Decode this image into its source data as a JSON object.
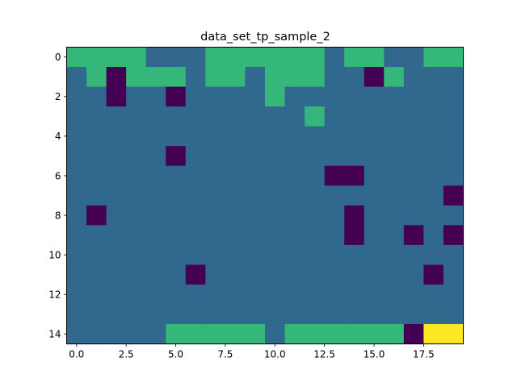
{
  "chart_data": {
    "type": "heatmap",
    "title": "data_set_tp_sample_2",
    "xlabel": "",
    "ylabel": "",
    "xlim": [
      -0.5,
      19.5
    ],
    "ylim": [
      14.5,
      -0.5
    ],
    "x_ticks": [
      0.0,
      2.5,
      5.0,
      7.5,
      10.0,
      12.5,
      15.0,
      17.5
    ],
    "x_tick_labels": [
      "0.0",
      "2.5",
      "5.0",
      "7.5",
      "10.0",
      "12.5",
      "15.0",
      "17.5"
    ],
    "y_ticks": [
      0,
      2,
      4,
      6,
      8,
      10,
      12,
      14
    ],
    "y_tick_labels": [
      "0",
      "2",
      "4",
      "6",
      "8",
      "10",
      "12",
      "14"
    ],
    "grid": false,
    "colormap": "viridis",
    "colors": {
      "0": "#440154",
      "1": "#31688e",
      "2": "#35b779",
      "3": "#fde725"
    },
    "matrix": [
      [
        2,
        2,
        2,
        2,
        1,
        1,
        1,
        2,
        2,
        2,
        2,
        2,
        2,
        1,
        2,
        2,
        1,
        1,
        2,
        2
      ],
      [
        1,
        2,
        0,
        2,
        2,
        2,
        1,
        2,
        2,
        1,
        2,
        2,
        2,
        1,
        1,
        0,
        2,
        1,
        1,
        1
      ],
      [
        1,
        1,
        0,
        1,
        1,
        0,
        1,
        1,
        1,
        1,
        2,
        1,
        1,
        1,
        1,
        1,
        1,
        1,
        1,
        1
      ],
      [
        1,
        1,
        1,
        1,
        1,
        1,
        1,
        1,
        1,
        1,
        1,
        1,
        2,
        1,
        1,
        1,
        1,
        1,
        1,
        1
      ],
      [
        1,
        1,
        1,
        1,
        1,
        1,
        1,
        1,
        1,
        1,
        1,
        1,
        1,
        1,
        1,
        1,
        1,
        1,
        1,
        1
      ],
      [
        1,
        1,
        1,
        1,
        1,
        0,
        1,
        1,
        1,
        1,
        1,
        1,
        1,
        1,
        1,
        1,
        1,
        1,
        1,
        1
      ],
      [
        1,
        1,
        1,
        1,
        1,
        1,
        1,
        1,
        1,
        1,
        1,
        1,
        1,
        0,
        0,
        1,
        1,
        1,
        1,
        1
      ],
      [
        1,
        1,
        1,
        1,
        1,
        1,
        1,
        1,
        1,
        1,
        1,
        1,
        1,
        1,
        1,
        1,
        1,
        1,
        1,
        0
      ],
      [
        1,
        0,
        1,
        1,
        1,
        1,
        1,
        1,
        1,
        1,
        1,
        1,
        1,
        1,
        0,
        1,
        1,
        1,
        1,
        1
      ],
      [
        1,
        1,
        1,
        1,
        1,
        1,
        1,
        1,
        1,
        1,
        1,
        1,
        1,
        1,
        0,
        1,
        1,
        0,
        1,
        0
      ],
      [
        1,
        1,
        1,
        1,
        1,
        1,
        1,
        1,
        1,
        1,
        1,
        1,
        1,
        1,
        1,
        1,
        1,
        1,
        1,
        1
      ],
      [
        1,
        1,
        1,
        1,
        1,
        1,
        0,
        1,
        1,
        1,
        1,
        1,
        1,
        1,
        1,
        1,
        1,
        1,
        0,
        1
      ],
      [
        1,
        1,
        1,
        1,
        1,
        1,
        1,
        1,
        1,
        1,
        1,
        1,
        1,
        1,
        1,
        1,
        1,
        1,
        1,
        1
      ],
      [
        1,
        1,
        1,
        1,
        1,
        1,
        1,
        1,
        1,
        1,
        1,
        1,
        1,
        1,
        1,
        1,
        1,
        1,
        1,
        1
      ],
      [
        1,
        1,
        1,
        1,
        1,
        2,
        2,
        2,
        2,
        2,
        1,
        2,
        2,
        2,
        2,
        2,
        2,
        0,
        3,
        3
      ]
    ]
  }
}
